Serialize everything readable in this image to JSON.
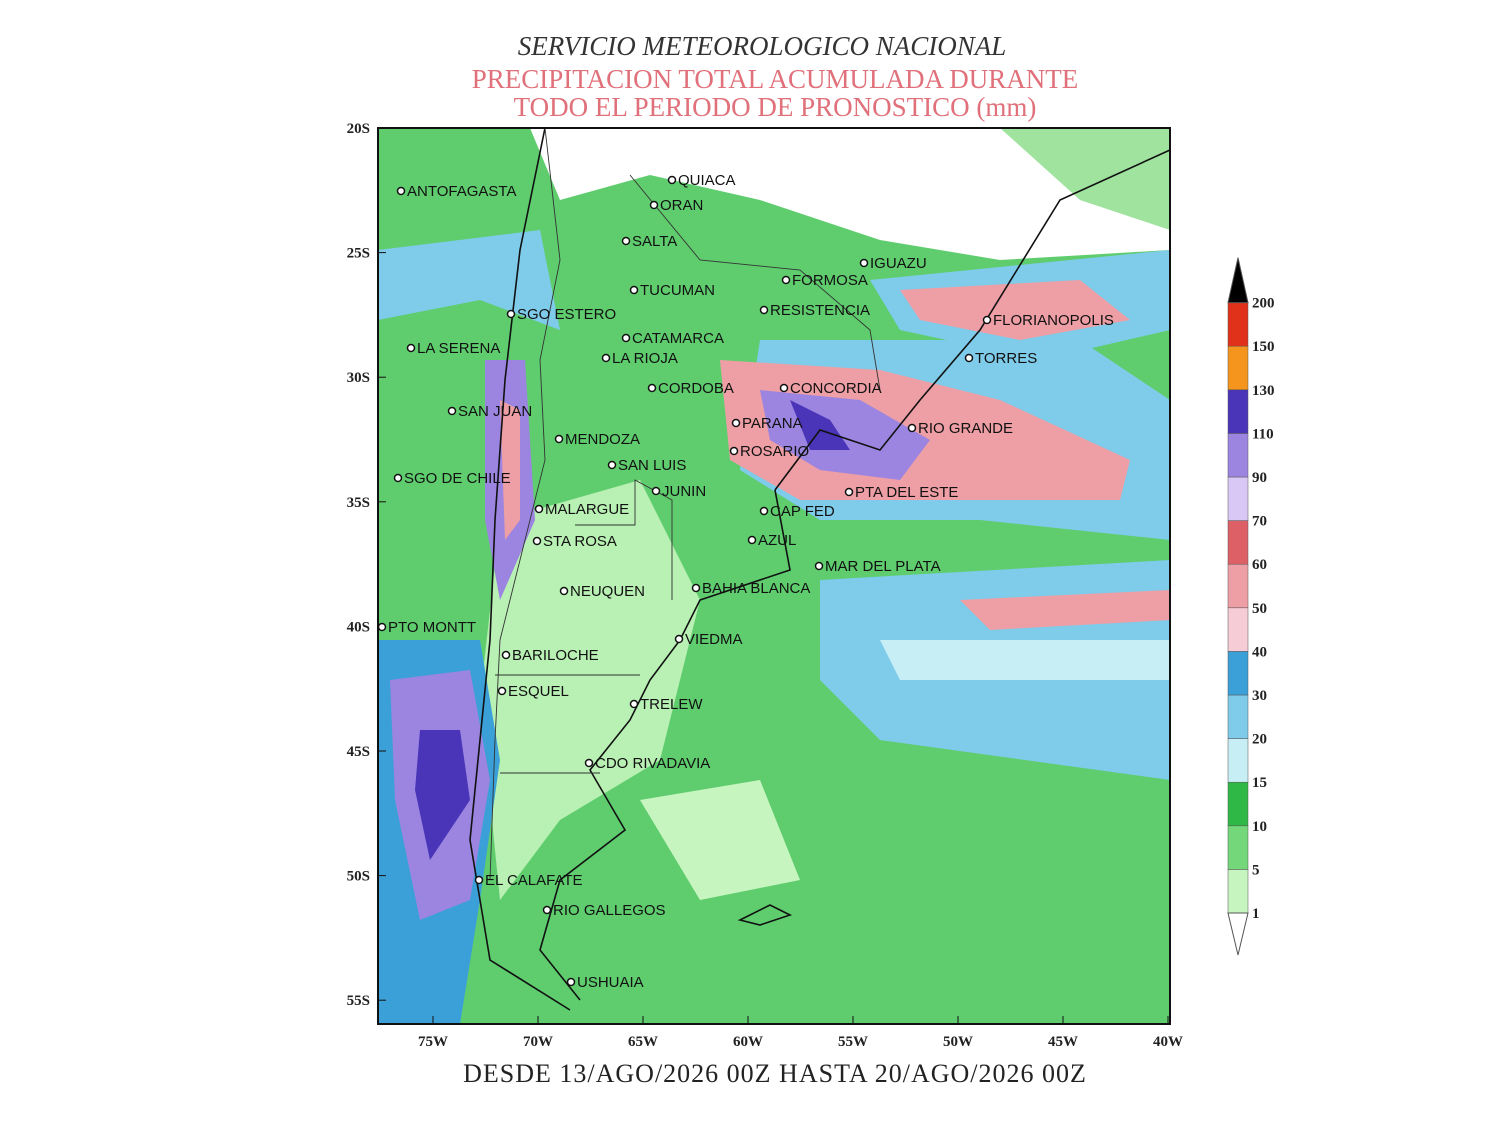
{
  "header": {
    "title": "SERVICIO METEOROLOGICO NACIONAL",
    "subtitle": [
      "PRECIPITACION TOTAL ACUMULADA DURANTE",
      "TODO EL PERIODO DE PRONOSTICO (mm)"
    ]
  },
  "map": {
    "lat_labels": [
      "20S",
      "25S",
      "30S",
      "35S",
      "40S",
      "45S",
      "50S",
      "55S"
    ],
    "lon_labels": [
      "75W",
      "70W",
      "65W",
      "60W",
      "55W",
      "50W",
      "45W",
      "40W"
    ],
    "cities": [
      "ANTOFAGASTA",
      "QUIACA",
      "ORAN",
      "SALTA",
      "TUCUMAN",
      "SGO ESTERO",
      "CATAMARCA",
      "LA SERENA",
      "LA RIOJA",
      "CORDOBA",
      "SAN JUAN",
      "MENDOZA",
      "SAN LUIS",
      "SGO DE CHILE",
      "JUNIN",
      "MALARGUE",
      "STA ROSA",
      "NEUQUEN",
      "BAHIA BLANCA",
      "PTO MONTT",
      "VIEDMA",
      "BARILOCHE",
      "ESQUEL",
      "TRELEW",
      "CDO RIVADAVIA",
      "EL CALAFATE",
      "RIO GALLEGOS",
      "USHUAIA",
      "FORMOSA",
      "IGUAZU",
      "RESISTENCIA",
      "FLORIANOPOLIS",
      "TORRES",
      "CONCORDIA",
      "PARANA",
      "ROSARIO",
      "RIO GRANDE",
      "PTA DEL ESTE",
      "CAP FED",
      "AZUL",
      "MAR DEL PLATA"
    ]
  },
  "colorbar": {
    "levels": [
      1,
      5,
      10,
      15,
      20,
      30,
      40,
      50,
      60,
      70,
      90,
      110,
      130,
      150,
      200
    ],
    "colors": [
      "#c6f5c0",
      "#74d87a",
      "#2fb845",
      "#c8eef5",
      "#7fcbea",
      "#3ba0d8",
      "#f6cdd6",
      "#ee9ea5",
      "#dd6066",
      "#d9c8f5",
      "#9b85e0",
      "#4a34b8",
      "#f5951e",
      "#e0321a"
    ],
    "under": "#ffffff",
    "over": "#000000"
  },
  "footer": "DESDE 13/AGO/2026 00Z HASTA 20/AGO/2026 00Z"
}
